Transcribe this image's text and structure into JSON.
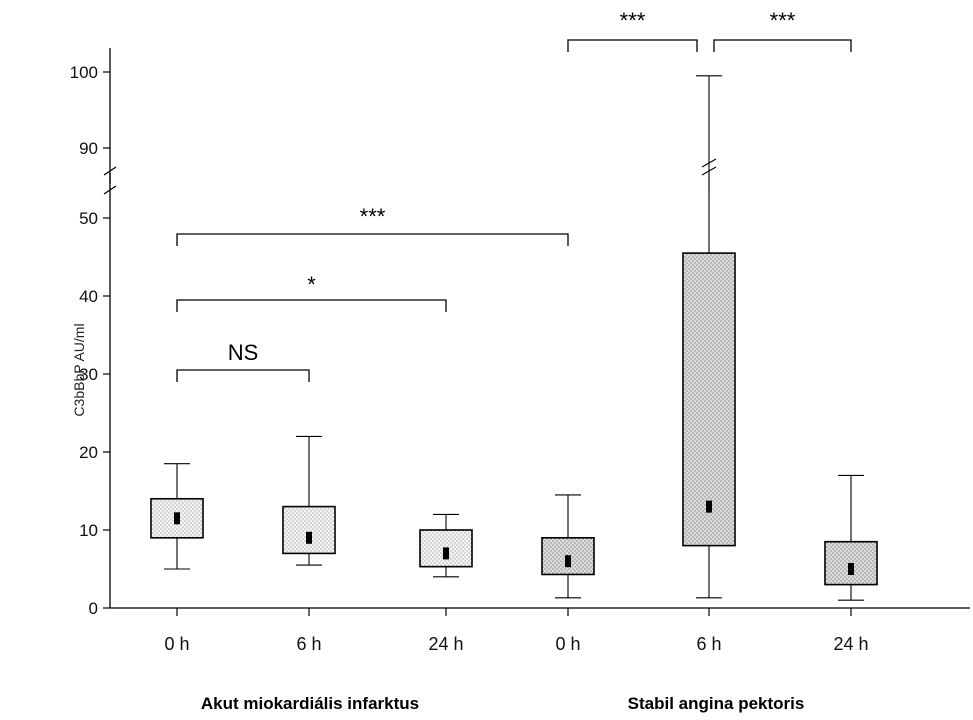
{
  "chart_data": {
    "type": "box",
    "ylabel": "C3bBbP AU/ml",
    "categories": [
      "0 h",
      "6 h",
      "24 h",
      "0 h",
      "6 h",
      "24 h"
    ],
    "groups": [
      {
        "label": "Akut miokardiális infarktus",
        "members": [
          0,
          1,
          2
        ]
      },
      {
        "label": "Stabil angina pektoris",
        "members": [
          3,
          4,
          5
        ]
      }
    ],
    "boxes": [
      {
        "min": 5,
        "q1": 9,
        "median": 11.5,
        "q3": 14,
        "max": 18.5
      },
      {
        "min": 5.5,
        "q1": 7,
        "median": 9,
        "q3": 13,
        "max": 22
      },
      {
        "min": 4,
        "q1": 5.3,
        "median": 7,
        "q3": 10,
        "max": 12
      },
      {
        "min": 1.3,
        "q1": 4.3,
        "median": 6,
        "q3": 9,
        "max": 14.5
      },
      {
        "min": 1.3,
        "q1": 8,
        "median": 13,
        "q3": 45.5,
        "max": 99.5
      },
      {
        "min": 1,
        "q1": 3,
        "median": 5,
        "q3": 8.5,
        "max": 17
      }
    ],
    "y_ticks": [
      "0",
      "10",
      "20",
      "30",
      "40",
      "50",
      "90",
      "100"
    ],
    "y_axis_break": {
      "from": 55,
      "to": 85
    },
    "ylim": [
      0,
      100
    ],
    "significance": [
      {
        "from": 0,
        "to": 1,
        "label": "NS"
      },
      {
        "from": 0,
        "to": 2,
        "label": "*"
      },
      {
        "from": 0,
        "to": 3,
        "label": "***"
      },
      {
        "from": 3,
        "to": 4,
        "label": "***"
      },
      {
        "from": 4,
        "to": 5,
        "label": "***"
      }
    ],
    "colors": {
      "box_fill_light": "#efefef",
      "box_fill_dark": "#d9d9d9",
      "line": "#000000"
    }
  }
}
